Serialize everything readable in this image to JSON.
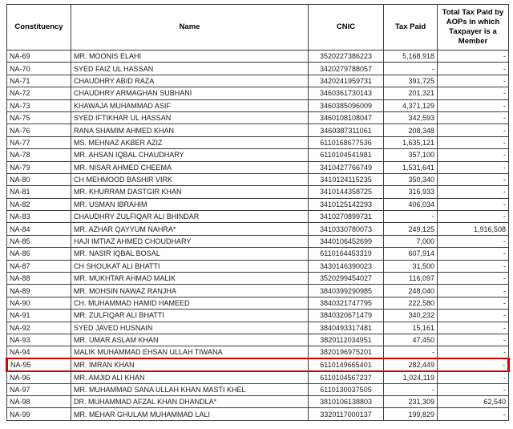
{
  "highlight": {
    "color": "#d40000",
    "row": "NA-95"
  },
  "table": {
    "headers": [
      "Constituency",
      "Name",
      "CNIC",
      "Tax Paid",
      "Total Tax Paid by AOPs in which Taxpayer is a Member"
    ],
    "rows": [
      {
        "constituency": "NA-69",
        "name": "MR. MOONIS ELAHI",
        "cnic": "3520227386223",
        "tax_paid": "5,168,918",
        "aop_tax": "-",
        "highlighted": false
      },
      {
        "constituency": "NA-70",
        "name": "SYED FAIZ UL HASSAN",
        "cnic": "3420279788057",
        "tax_paid": "-",
        "aop_tax": "-",
        "highlighted": false
      },
      {
        "constituency": "NA-71",
        "name": "CHAUDHRY ABID RAZA",
        "cnic": "3420241959731",
        "tax_paid": "391,725",
        "aop_tax": "-",
        "highlighted": false
      },
      {
        "constituency": "NA-72",
        "name": "CHAUDHRY ARMAGHAN SUBHANI",
        "cnic": "3460361730143",
        "tax_paid": "201,321",
        "aop_tax": "-",
        "highlighted": false
      },
      {
        "constituency": "NA-73",
        "name": "KHAWAJA MUHAMMAD ASIF",
        "cnic": "3460385096009",
        "tax_paid": "4,371,129",
        "aop_tax": "-",
        "highlighted": false
      },
      {
        "constituency": "NA-75",
        "name": "SYED IFTIKHAR UL HASSAN",
        "cnic": "3460108108047",
        "tax_paid": "342,593",
        "aop_tax": "-",
        "highlighted": false
      },
      {
        "constituency": "NA-76",
        "name": "RANA SHAMIM AHMED KHAN",
        "cnic": "3460387311061",
        "tax_paid": "208,348",
        "aop_tax": "-",
        "highlighted": false
      },
      {
        "constituency": "NA-77",
        "name": "MS. MEHNAZ AKBER AZIZ",
        "cnic": "6110168677536",
        "tax_paid": "1,635,121",
        "aop_tax": "-",
        "highlighted": false
      },
      {
        "constituency": "NA-78",
        "name": "MR. AHSAN IQBAL CHAUDHARY",
        "cnic": "6110104541981",
        "tax_paid": "357,100",
        "aop_tax": "-",
        "highlighted": false
      },
      {
        "constituency": "NA-79",
        "name": "MR. NISAR AHMED CHEEMA",
        "cnic": "3410427766749",
        "tax_paid": "1,531,641",
        "aop_tax": "-",
        "highlighted": false
      },
      {
        "constituency": "NA-80",
        "name": "CH MEHMOOD BASHIR VIRK",
        "cnic": "3410124115235",
        "tax_paid": "350,340",
        "aop_tax": "-",
        "highlighted": false
      },
      {
        "constituency": "NA-81",
        "name": "MR. KHURRAM DASTGIR KHAN",
        "cnic": "3410144358725",
        "tax_paid": "316,933",
        "aop_tax": "-",
        "highlighted": false
      },
      {
        "constituency": "NA-82",
        "name": "MR. USMAN IBRAHIM",
        "cnic": "3410125142293",
        "tax_paid": "406,034",
        "aop_tax": "-",
        "highlighted": false
      },
      {
        "constituency": "NA-83",
        "name": "CHAUDHRY ZULFIQAR ALI BHINDAR",
        "cnic": "3410270899731",
        "tax_paid": "-",
        "aop_tax": "-",
        "highlighted": false
      },
      {
        "constituency": "NA-84",
        "name": "MR. AZHAR QAYYUM NAHRA*",
        "cnic": "3410330780073",
        "tax_paid": "249,125",
        "aop_tax": "1,916,508",
        "highlighted": false
      },
      {
        "constituency": "NA-85",
        "name": "HAJI IMTIAZ AHMED CHOUDHARY",
        "cnic": "3440106452699",
        "tax_paid": "7,000",
        "aop_tax": "-",
        "highlighted": false
      },
      {
        "constituency": "NA-86",
        "name": "MR. NASIR IQBAL BOSAL",
        "cnic": "6110164453319",
        "tax_paid": "607,914",
        "aop_tax": "-",
        "highlighted": false
      },
      {
        "constituency": "NA-87",
        "name": "CH SHOUKAT ALI BHATTI",
        "cnic": "3430146390023",
        "tax_paid": "31,500",
        "aop_tax": "-",
        "highlighted": false
      },
      {
        "constituency": "NA-88",
        "name": "MR. MUKHTAR AHMAD MALIK",
        "cnic": "3520299454027",
        "tax_paid": "116,097",
        "aop_tax": "-",
        "highlighted": false
      },
      {
        "constituency": "NA-89",
        "name": "MR. MOHSIN NAWAZ RANJHA",
        "cnic": "3840399290985",
        "tax_paid": "248,040",
        "aop_tax": "-",
        "highlighted": false
      },
      {
        "constituency": "NA-90",
        "name": "CH. MUHAMMAD HAMID HAMEED",
        "cnic": "3840321747795",
        "tax_paid": "222,580",
        "aop_tax": "-",
        "highlighted": false
      },
      {
        "constituency": "NA-91",
        "name": "MR. ZULFIQAR ALI BHATTI",
        "cnic": "3840320671479",
        "tax_paid": "340,232",
        "aop_tax": "-",
        "highlighted": false
      },
      {
        "constituency": "NA-92",
        "name": "SYED JAVED HUSNAIN",
        "cnic": "3840493317481",
        "tax_paid": "15,161",
        "aop_tax": "-",
        "highlighted": false
      },
      {
        "constituency": "NA-93",
        "name": "MR. UMAR ASLAM KHAN",
        "cnic": "3820112034951",
        "tax_paid": "47,450",
        "aop_tax": "-",
        "highlighted": false
      },
      {
        "constituency": "NA-94",
        "name": "MALIK MUHAMMAD EHSAN ULLAH TIWANA",
        "cnic": "3820196975201",
        "tax_paid": "-",
        "aop_tax": "-",
        "highlighted": false
      },
      {
        "constituency": "NA-95",
        "name": "MR. IMRAN KHAN",
        "cnic": "6110149665401",
        "tax_paid": "282,449",
        "aop_tax": "-",
        "highlighted": true
      },
      {
        "constituency": "NA-96",
        "name": "MR. AMJID ALI KHAN",
        "cnic": "6110104567237",
        "tax_paid": "1,024,119",
        "aop_tax": "-",
        "highlighted": false
      },
      {
        "constituency": "NA-97",
        "name": "MR. MUHAMMAD SANA ULLAH KHAN MASTI KHEL",
        "cnic": "6110130037505",
        "tax_paid": "-",
        "aop_tax": "-",
        "highlighted": false
      },
      {
        "constituency": "NA-98",
        "name": "DR. MUHAMMAD AFZAL KHAN DHANDLA*",
        "cnic": "3810106138803",
        "tax_paid": "231,309",
        "aop_tax": "62,540",
        "highlighted": false
      },
      {
        "constituency": "NA-99",
        "name": "MR. MEHAR GHULAM MUHAMMAD LALI",
        "cnic": "3320117000137",
        "tax_paid": "199,829",
        "aop_tax": "-",
        "highlighted": false
      }
    ]
  }
}
